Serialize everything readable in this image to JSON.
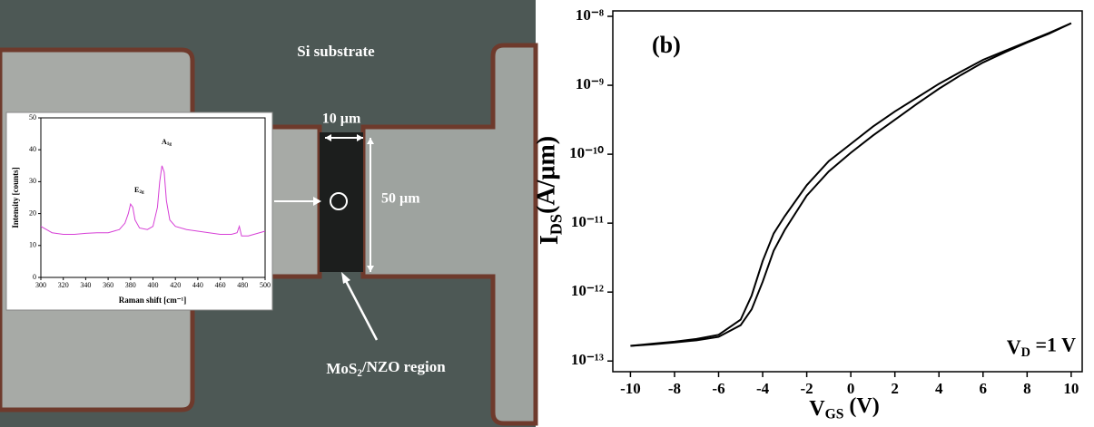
{
  "photo": {
    "labels": {
      "substrate": "Si substrate",
      "width": "10 µm",
      "length": "50 µm",
      "region": {
        "text": "MoS",
        "sub": "2",
        "rest": "/NZO region"
      }
    }
  },
  "chart_data": [
    {
      "type": "line",
      "xlabel": "Raman shift [cm⁻¹]",
      "ylabel": "Intensity [counts]",
      "annotations": [
        {
          "text": "E",
          "sub": "2g"
        },
        {
          "text": "A",
          "sub": "1g"
        }
      ],
      "x": [
        300,
        305,
        310,
        320,
        330,
        340,
        350,
        360,
        365,
        370,
        375,
        378,
        380,
        382,
        384,
        388,
        395,
        400,
        404,
        406,
        408,
        410,
        412,
        415,
        420,
        430,
        440,
        450,
        460,
        470,
        475,
        477,
        479,
        485,
        490,
        500
      ],
      "series": [
        {
          "color": "#d63fd6",
          "values": [
            16,
            15,
            14,
            13.5,
            13.5,
            13.8,
            14,
            14,
            14.5,
            15,
            17,
            20,
            23,
            22,
            18,
            15.5,
            15,
            16,
            22,
            30,
            35,
            33,
            24,
            18,
            16,
            15,
            14.5,
            14,
            13.5,
            13.5,
            14,
            16,
            13,
            13,
            13.5,
            14.5
          ]
        }
      ],
      "xlim": [
        300,
        500
      ],
      "ylim": [
        0,
        50
      ],
      "xticks": [
        300,
        320,
        340,
        360,
        380,
        400,
        420,
        440,
        460,
        480,
        500
      ],
      "yticks": [
        0,
        10,
        20,
        30,
        40,
        50
      ]
    },
    {
      "type": "line",
      "yscale": "log",
      "panel_label": "(b)",
      "xlabel": {
        "text": "V",
        "sub": "GS",
        "rest": " (V)"
      },
      "ylabel": {
        "text": "I",
        "sub": "DS",
        "rest": "(A/µm)"
      },
      "annotation": {
        "text": "V",
        "sub": "D",
        "rest": " =1 V"
      },
      "x": [
        -10,
        -9,
        -8,
        -7,
        -6,
        -5,
        -4.5,
        -4,
        -3.5,
        -3,
        -2,
        -1,
        0,
        1,
        2,
        3,
        4,
        5,
        6,
        7,
        8,
        9,
        10
      ],
      "series": [
        {
          "color": "#000000",
          "values": [
            1.66e-13,
            1.78e-13,
            1.91e-13,
            2.09e-13,
            2.4e-13,
            3.98e-13,
            8.91e-13,
            2.82e-12,
            7.08e-12,
            1.26e-11,
            3.55e-11,
            7.94e-11,
            1.41e-10,
            2.51e-10,
            4.17e-10,
            6.61e-10,
            1.05e-09,
            1.58e-09,
            2.34e-09,
            3.16e-09,
            4.27e-09,
            5.75e-09,
            7.94e-09
          ]
        },
        {
          "color": "#000000",
          "values": [
            1.66e-13,
            1.74e-13,
            1.86e-13,
            2e-13,
            2.24e-13,
            3.31e-13,
            5.62e-13,
            1.41e-12,
            3.98e-12,
            7.94e-12,
            2.51e-11,
            5.62e-11,
            1.05e-10,
            1.86e-10,
            3.16e-10,
            5.37e-10,
            8.91e-10,
            1.41e-09,
            2.14e-09,
            3.02e-09,
            4.17e-09,
            5.62e-09,
            7.94e-09
          ]
        }
      ],
      "xlim": [
        -10.8,
        10.5
      ],
      "ylim": [
        7e-14,
        1.2e-08
      ],
      "xticks": [
        -10,
        -8,
        -6,
        -4,
        -2,
        0,
        2,
        4,
        6,
        8,
        10
      ],
      "yticks": [
        {
          "value": 1e-13,
          "label": "10⁻¹³"
        },
        {
          "value": 1e-12,
          "label": "10⁻¹²"
        },
        {
          "value": 1e-11,
          "label": "10⁻¹¹"
        },
        {
          "value": 1e-10,
          "label": "10⁻¹⁰"
        },
        {
          "value": 1e-09,
          "label": "10⁻⁹"
        },
        {
          "value": 1e-08,
          "label": "10⁻⁸"
        }
      ]
    }
  ]
}
